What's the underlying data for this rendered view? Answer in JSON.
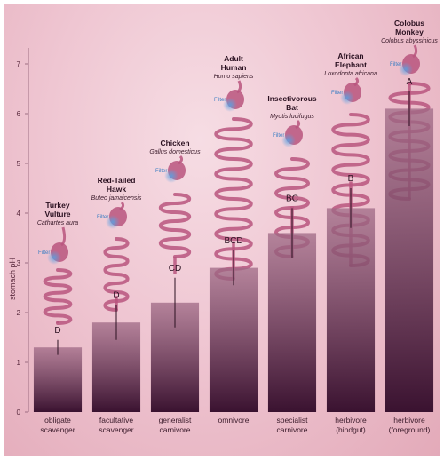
{
  "chart_data": {
    "type": "bar",
    "ylabel": "stomach pH",
    "ylim": [
      0,
      7.5
    ],
    "yticks": [
      0,
      1,
      2,
      3,
      4,
      5,
      6,
      7
    ],
    "categories": [
      [
        "obligate",
        "scavenger"
      ],
      [
        "facultative",
        "scavenger"
      ],
      [
        "generalist",
        "carnivore"
      ],
      [
        "omnivore"
      ],
      [
        "specialist",
        "carnivore"
      ],
      [
        "herbivore",
        "(hindgut)"
      ],
      [
        "herbivore",
        "(foreground)"
      ]
    ],
    "values": [
      1.3,
      1.8,
      2.2,
      2.9,
      3.6,
      4.1,
      6.1
    ],
    "error": [
      0.15,
      0.35,
      0.5,
      0.35,
      0.5,
      0.4,
      0.35
    ],
    "group_letters": [
      "D",
      "D",
      "CD",
      "BCD",
      "BC",
      "B",
      "A"
    ],
    "animals": [
      {
        "name": [
          "Turkey",
          "Vulture"
        ],
        "scientific": "Cathartes aura"
      },
      {
        "name": [
          "Red-Tailed",
          "Hawk"
        ],
        "scientific": "Buteo jamaicensis"
      },
      {
        "name": [
          "Chicken"
        ],
        "scientific": "Gallus domesticus"
      },
      {
        "name": [
          "Adult",
          "Human"
        ],
        "scientific": "Homo sapiens"
      },
      {
        "name": [
          "Insectivorous",
          "Bat"
        ],
        "scientific": "Myotis lucifugus"
      },
      {
        "name": [
          "African",
          "Elephant"
        ],
        "scientific": "Loxodonta africana"
      },
      {
        "name": [
          "Colobus",
          "Monkey"
        ],
        "scientific": "Colobus abyssinicus"
      }
    ],
    "gut_marker_label": "Filter",
    "colors": {
      "bar_top": "#a06a86",
      "bar_bottom": "#3a1230",
      "gut": "#b8557e",
      "filter": "#5b9fe0"
    },
    "grid": false,
    "legend": "none"
  }
}
